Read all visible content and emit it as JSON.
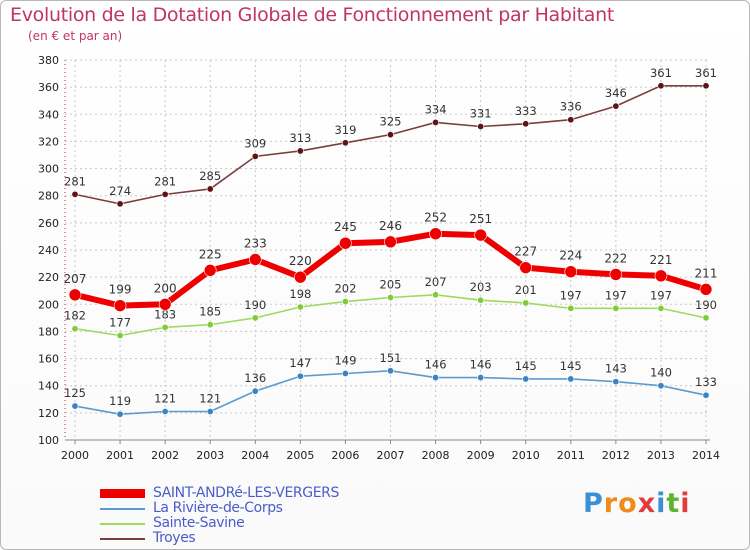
{
  "chart_data": {
    "type": "line",
    "title": "Evolution de la Dotation Globale de Fonctionnement par Habitant",
    "subtitle": "(en € et par an)",
    "categories": [
      "2000",
      "2001",
      "2002",
      "2003",
      "2004",
      "2005",
      "2006",
      "2007",
      "2008",
      "2009",
      "2010",
      "2011",
      "2012",
      "2013",
      "2014"
    ],
    "ylim": [
      100,
      380
    ],
    "yticks": [
      "100",
      "120",
      "140",
      "160",
      "180",
      "200",
      "220",
      "240",
      "260",
      "280",
      "300",
      "320",
      "340",
      "360",
      "380"
    ],
    "grid": true,
    "series": [
      {
        "name": "Troyes",
        "values": [
          281,
          274,
          281,
          285,
          309,
          313,
          319,
          325,
          334,
          331,
          333,
          336,
          346,
          361,
          361
        ],
        "color": "#7a3e3e",
        "marker": "#5e1414"
      },
      {
        "name": "Sainte-Savine",
        "values": [
          182,
          177,
          183,
          185,
          190,
          198,
          202,
          205,
          207,
          203,
          201,
          197,
          197,
          197,
          190
        ],
        "color": "#9ddb5e",
        "marker": "#7fcc3a"
      },
      {
        "name": "La Rivière-de-Corps",
        "values": [
          125,
          119,
          121,
          121,
          136,
          147,
          149,
          151,
          146,
          146,
          145,
          145,
          143,
          140,
          133
        ],
        "color": "#5b9acf",
        "marker": "#3b84c4"
      },
      {
        "name": "SAINT-ANDRé-LES-VERGERS",
        "values": [
          207,
          199,
          200,
          225,
          233,
          220,
          245,
          246,
          252,
          251,
          227,
          224,
          222,
          221,
          211
        ],
        "color": "#ee0000",
        "marker": "#ee0000"
      }
    ],
    "legend": [
      "SAINT-ANDRé-LES-VERGERS",
      "La Rivière-de-Corps",
      "Sainte-Savine",
      "Troyes"
    ]
  },
  "brand": {
    "letters": [
      "P",
      "r",
      "o",
      "x",
      "i",
      "t",
      "i"
    ],
    "colors": [
      "#3b8fd6",
      "#f08a1c",
      "#f08a1c",
      "#e23b3b",
      "#3b8fd6",
      "#5cb531",
      "#e23b3b"
    ]
  }
}
